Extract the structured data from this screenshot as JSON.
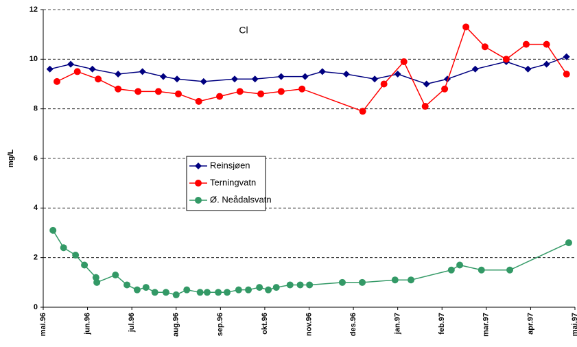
{
  "chart_data": {
    "type": "line",
    "annotation": "Cl",
    "y_label": "mg/L",
    "xlim": [
      0,
      12
    ],
    "xticks": [
      {
        "value": 0,
        "label": "mai.96"
      },
      {
        "value": 1,
        "label": "jun.96"
      },
      {
        "value": 2,
        "label": "jul.96"
      },
      {
        "value": 3,
        "label": "aug.96"
      },
      {
        "value": 4,
        "label": "sep.96"
      },
      {
        "value": 5,
        "label": "okt.96"
      },
      {
        "value": 6,
        "label": "nov.96"
      },
      {
        "value": 7,
        "label": "des.96"
      },
      {
        "value": 8,
        "label": "jan.97"
      },
      {
        "value": 9,
        "label": "feb.97"
      },
      {
        "value": 10,
        "label": "mar.97"
      },
      {
        "value": 11,
        "label": "apr.97"
      },
      {
        "value": 12,
        "label": "mai.97"
      }
    ],
    "ylim": [
      0,
      12
    ],
    "yticks": [
      0,
      2,
      4,
      6,
      8,
      10,
      12
    ],
    "grid": true,
    "series": [
      {
        "name": "Reinsjøen",
        "color": "#000080",
        "marker": "diamond",
        "x": [
          0.15,
          0.62,
          1.11,
          1.69,
          2.24,
          2.71,
          3.02,
          3.62,
          4.32,
          4.78,
          5.37,
          5.91,
          6.3,
          6.84,
          7.48,
          8.0,
          8.65,
          9.12,
          9.75,
          10.45,
          10.94,
          11.36,
          11.81
        ],
        "values": [
          9.6,
          9.8,
          9.6,
          9.4,
          9.5,
          9.3,
          9.2,
          9.1,
          9.2,
          9.2,
          9.3,
          9.3,
          9.5,
          9.4,
          9.2,
          9.4,
          9.0,
          9.2,
          9.6,
          9.9,
          9.6,
          9.8,
          10.1
        ]
      },
      {
        "name": "Terningvatn",
        "color": "#ff0000",
        "marker": "circle",
        "x": [
          0.31,
          0.77,
          1.24,
          1.69,
          2.14,
          2.6,
          3.05,
          3.51,
          3.98,
          4.44,
          4.91,
          5.37,
          5.84,
          7.21,
          7.69,
          8.14,
          8.62,
          9.06,
          9.54,
          9.97,
          10.45,
          10.9,
          11.36,
          11.81
        ],
        "values": [
          9.1,
          9.5,
          9.2,
          8.8,
          8.7,
          8.7,
          8.6,
          8.3,
          8.5,
          8.7,
          8.6,
          8.7,
          8.8,
          7.9,
          9.0,
          9.9,
          8.1,
          8.8,
          11.3,
          10.5,
          10.0,
          10.6,
          10.6,
          9.4
        ]
      },
      {
        "name": "Ø. Neådalsvatn",
        "color": "#339966",
        "marker": "circle",
        "x": [
          0.22,
          0.46,
          0.73,
          0.93,
          1.19,
          1.21,
          1.63,
          1.89,
          2.12,
          2.32,
          2.52,
          2.77,
          3.0,
          3.24,
          3.54,
          3.7,
          3.95,
          4.15,
          4.41,
          4.63,
          4.88,
          5.08,
          5.26,
          5.57,
          5.8,
          6.01,
          6.75,
          7.2,
          7.94,
          8.3,
          9.21,
          9.4,
          9.89,
          10.53,
          11.86
        ],
        "values": [
          3.1,
          2.4,
          2.1,
          1.7,
          1.2,
          1.0,
          1.3,
          0.9,
          0.7,
          0.8,
          0.6,
          0.6,
          0.5,
          0.7,
          0.6,
          0.6,
          0.6,
          0.6,
          0.7,
          0.7,
          0.8,
          0.7,
          0.8,
          0.9,
          0.9,
          0.9,
          1.0,
          1.0,
          1.1,
          1.1,
          1.5,
          1.7,
          1.5,
          1.5,
          2.6
        ]
      }
    ]
  }
}
